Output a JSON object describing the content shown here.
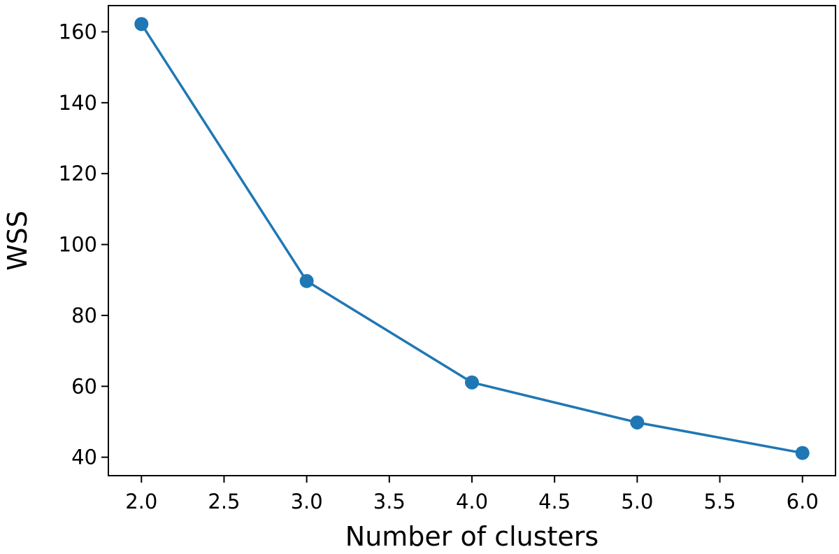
{
  "chart_data": {
    "type": "line",
    "title": "",
    "xlabel": "Number of clusters",
    "ylabel": "WSS",
    "x": [
      2.0,
      3.0,
      4.0,
      5.0,
      6.0
    ],
    "series": [
      {
        "values": [
          162.2,
          89.7,
          61.1,
          49.8,
          41.2
        ],
        "color": "#1f77b4",
        "marker": "circle"
      }
    ],
    "xlim": [
      1.8,
      6.2
    ],
    "ylim": [
      34.8,
      167.4
    ],
    "x_ticks": [
      2.0,
      2.5,
      3.0,
      3.5,
      4.0,
      4.5,
      5.0,
      5.5,
      6.0
    ],
    "x_tick_labels": [
      "2.0",
      "2.5",
      "3.0",
      "3.5",
      "4.0",
      "4.5",
      "5.0",
      "5.5",
      "6.0"
    ],
    "y_ticks": [
      40,
      60,
      80,
      100,
      120,
      140,
      160
    ],
    "y_tick_labels": [
      "40",
      "60",
      "80",
      "100",
      "120",
      "140",
      "160"
    ],
    "grid": false,
    "legend": "none"
  }
}
